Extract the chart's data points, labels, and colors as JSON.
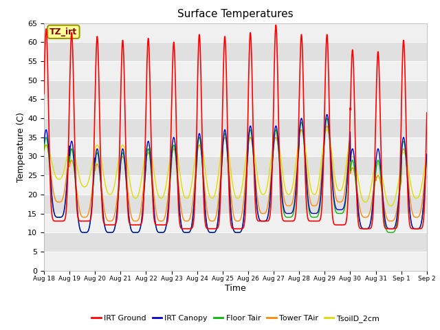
{
  "title": "Surface Temperatures",
  "xlabel": "Time",
  "ylabel": "Temperature (C)",
  "ylim": [
    0,
    65
  ],
  "yticks": [
    0,
    5,
    10,
    15,
    20,
    25,
    30,
    35,
    40,
    45,
    50,
    55,
    60,
    65
  ],
  "x_labels": [
    "Aug 18",
    "Aug 19",
    "Aug 20",
    "Aug 21",
    "Aug 22",
    "Aug 23",
    "Aug 24",
    "Aug 25",
    "Aug 26",
    "Aug 27",
    "Aug 28",
    "Aug 29",
    "Aug 30",
    "Aug 31",
    "Sep 1",
    "Sep 2"
  ],
  "series": {
    "IRT Ground": {
      "color": "#ff0000",
      "lw": 1.2
    },
    "IRT Canopy": {
      "color": "#0000cc",
      "lw": 1.0
    },
    "Floor Tair": {
      "color": "#00bb00",
      "lw": 1.0
    },
    "Tower TAir": {
      "color": "#ff8800",
      "lw": 1.0
    },
    "TsoilD_2cm": {
      "color": "#dddd00",
      "lw": 1.0
    }
  },
  "annotation_text": "TZ_irt",
  "annotation_color": "#880000",
  "annotation_bg": "#ffff99",
  "annotation_border": "#999900",
  "background_plot": "#ebebeb",
  "background_fig": "#ffffff",
  "band_colors": [
    "#f0f0f0",
    "#e0e0e0"
  ],
  "grid_color": "#ffffff"
}
